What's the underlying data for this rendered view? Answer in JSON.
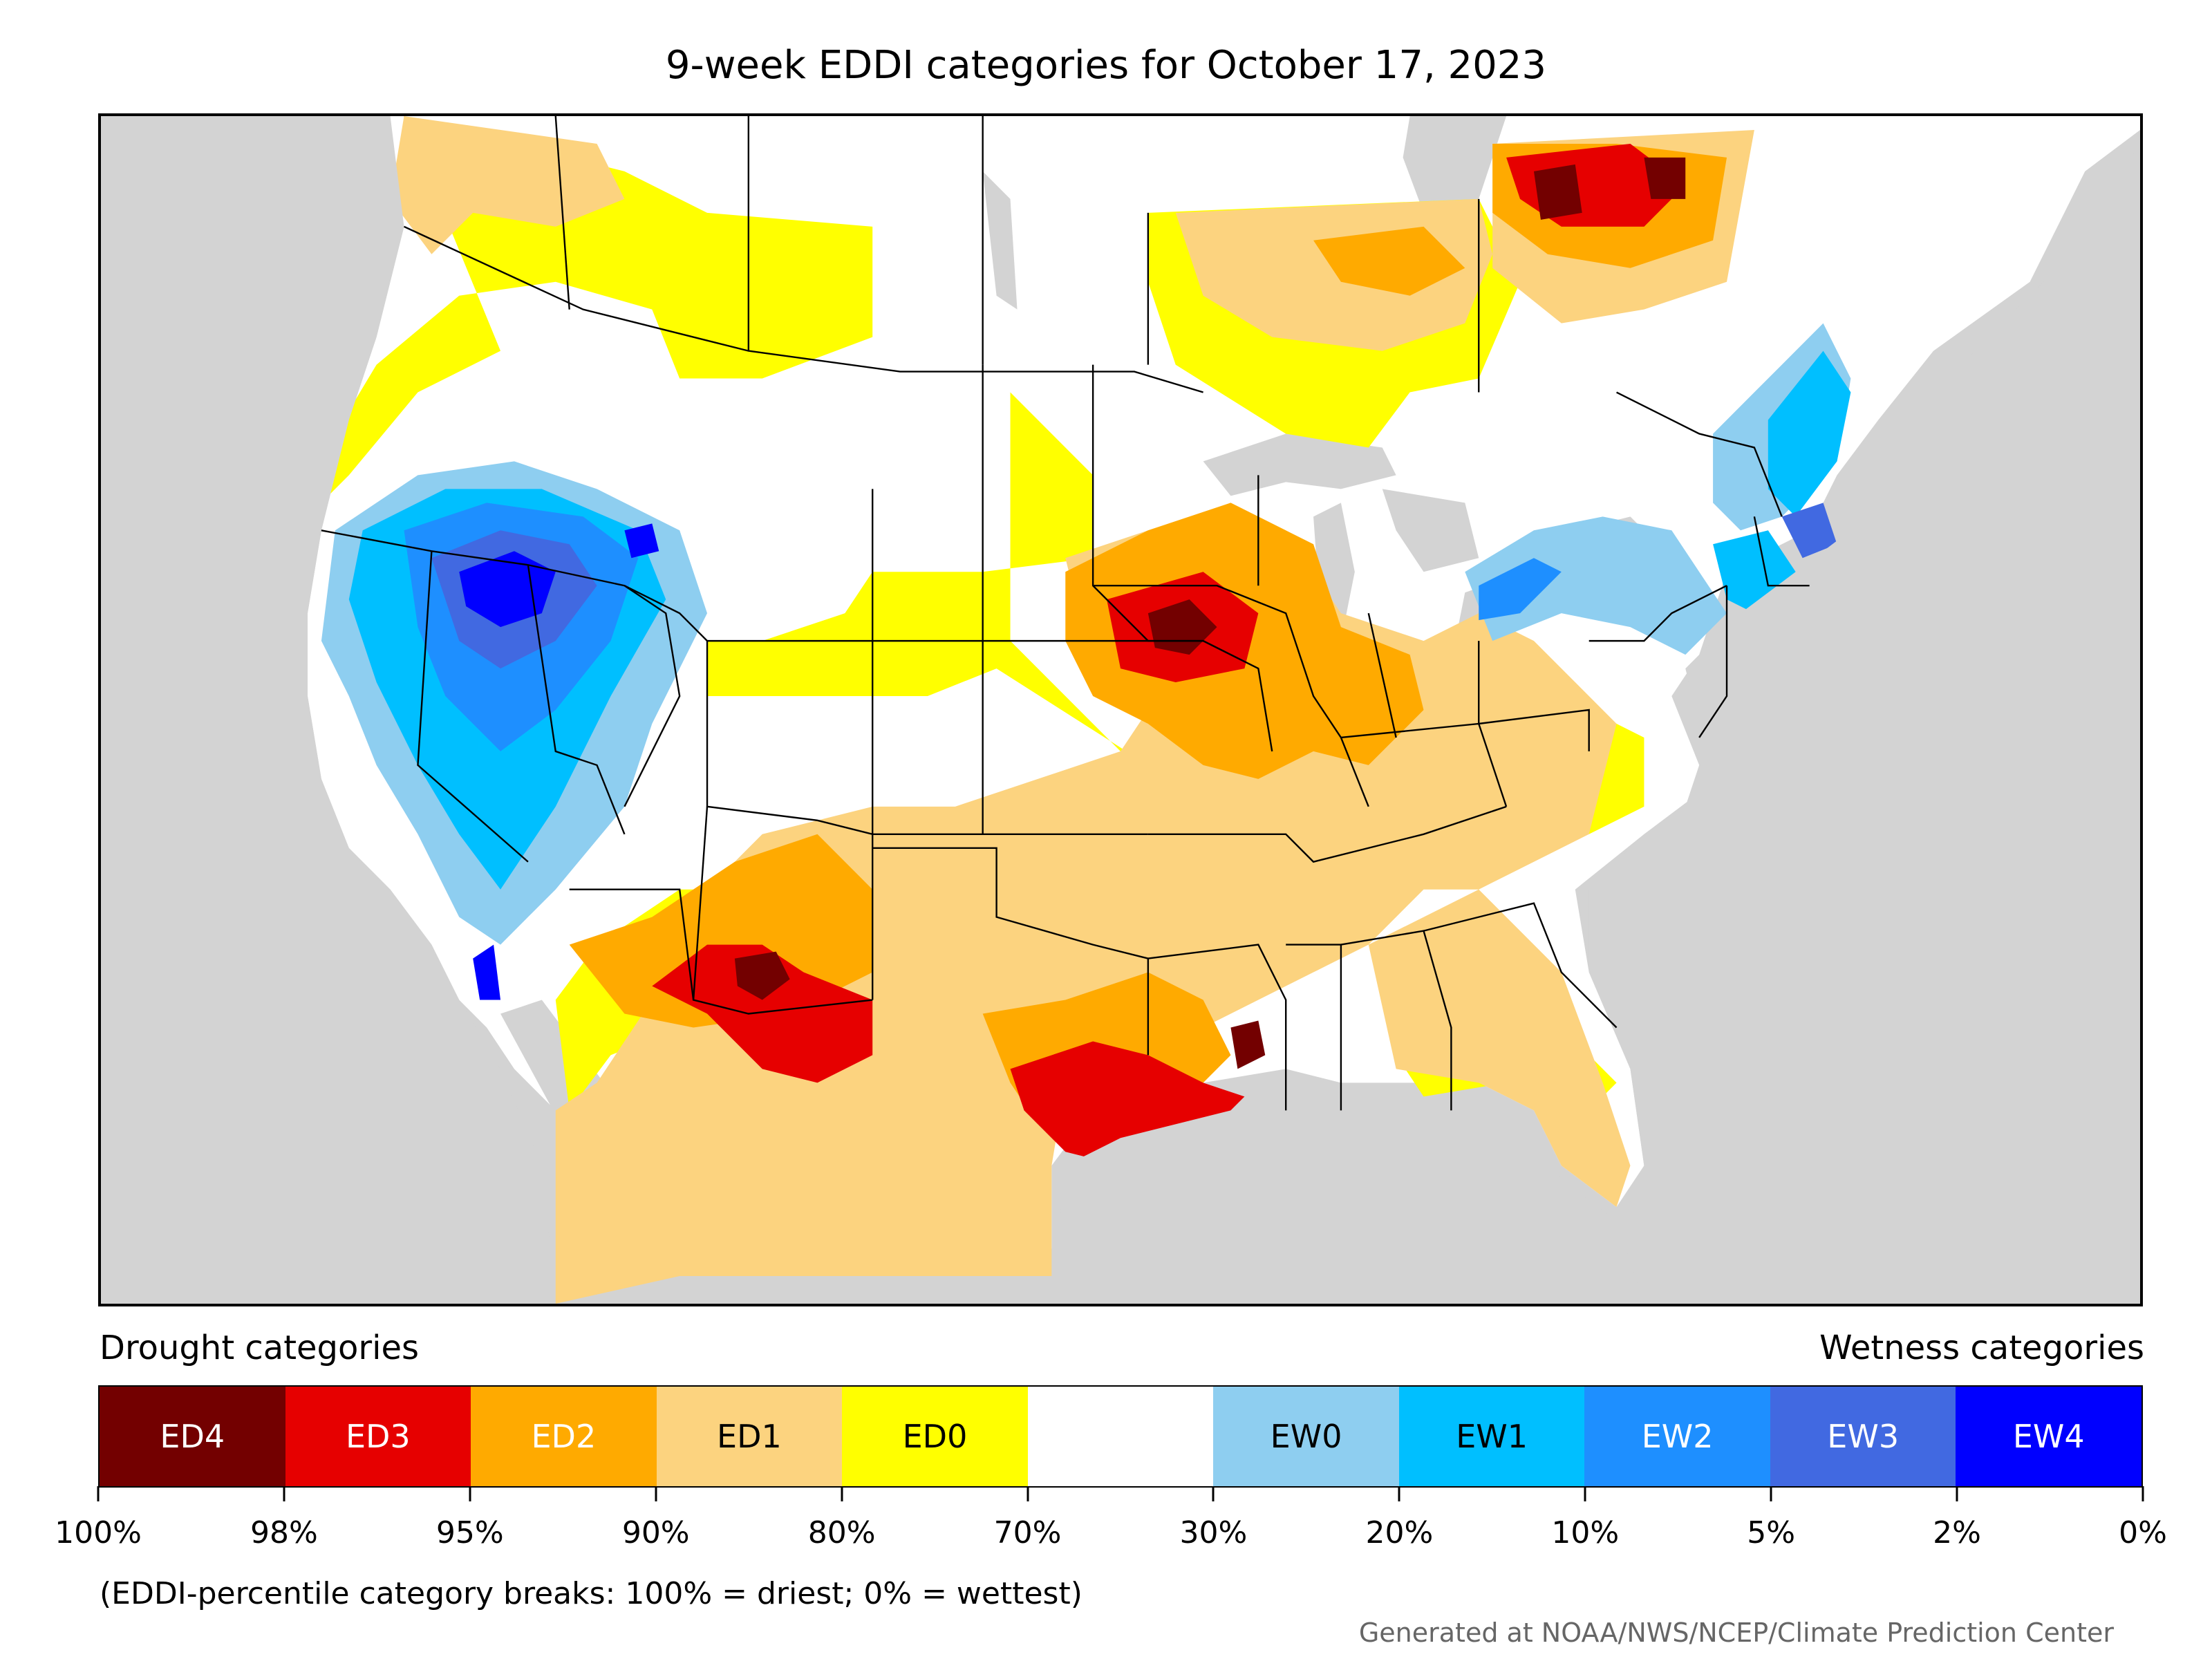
{
  "title": "9-week EDDI categories for October 17, 2023",
  "legend": {
    "drought_label": "Drought categories",
    "wetness_label": "Wetness categories",
    "categories": [
      {
        "label": "ED4",
        "color": "#730000",
        "text_color": "#ffffff"
      },
      {
        "label": "ED3",
        "color": "#e60000",
        "text_color": "#ffffff"
      },
      {
        "label": "ED2",
        "color": "#ffaa00",
        "text_color": "#ffffff"
      },
      {
        "label": "ED1",
        "color": "#fcd37f",
        "text_color": "#000000"
      },
      {
        "label": "ED0",
        "color": "#ffff00",
        "text_color": "#000000"
      },
      {
        "label": "",
        "color": "#ffffff",
        "text_color": "#000000"
      },
      {
        "label": "EW0",
        "color": "#8ecef0",
        "text_color": "#000000"
      },
      {
        "label": "EW1",
        "color": "#00bfff",
        "text_color": "#000000"
      },
      {
        "label": "EW2",
        "color": "#1e8fff",
        "text_color": "#ffffff"
      },
      {
        "label": "EW3",
        "color": "#4169e1",
        "text_color": "#ffffff"
      },
      {
        "label": "EW4",
        "color": "#0000ff",
        "text_color": "#ffffff"
      }
    ],
    "tick_labels": [
      "100%",
      "98%",
      "95%",
      "90%",
      "80%",
      "70%",
      "30%",
      "20%",
      "10%",
      "5%",
      "2%",
      "0%"
    ]
  },
  "note": "(EDDI-percentile category breaks: 100% = driest; 0% = wettest)",
  "credit": "Generated at NOAA/NWS/NCEP/Climate Prediction Center",
  "colors": {
    "ocean": "#d3d3d3",
    "ED4": "#730000",
    "ED3": "#e60000",
    "ED2": "#ffaa00",
    "ED1": "#fcd37f",
    "ED0": "#ffff00",
    "EW0": "#8ecef0",
    "EW1": "#00bfff",
    "EW2": "#1e8fff",
    "EW3": "#4169e1",
    "EW4": "#0000ff"
  }
}
